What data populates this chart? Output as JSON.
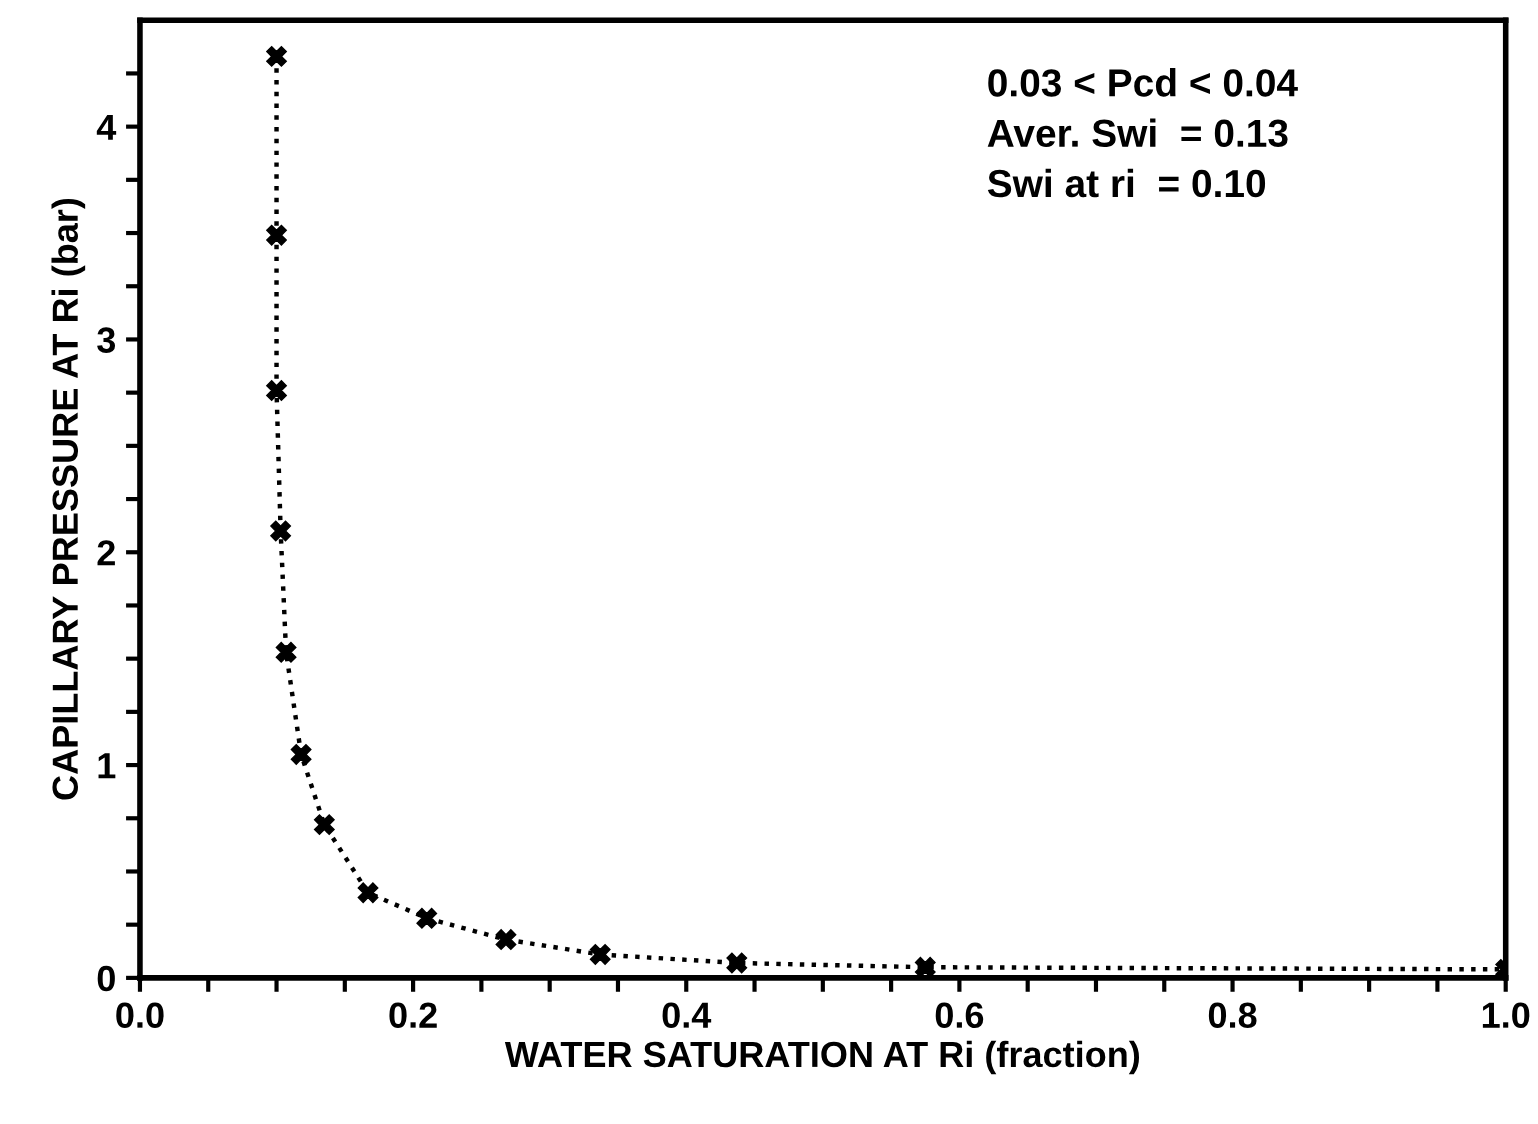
{
  "chart_data": {
    "type": "line",
    "xlabel": "WATER SATURATION AT Ri (fraction)",
    "ylabel": "CAPILLARY PRESSURE AT Ri (bar)",
    "annotations": [
      "0.03 < Pcd < 0.04\nAver. Swi  = 0.13\nSwi at ri  = 0.10"
    ],
    "series": [
      {
        "color": "#000000",
        "marker": "cross",
        "line_style": "dotted",
        "x": [
          0.1,
          0.1,
          0.1,
          0.103,
          0.107,
          0.118,
          0.135,
          0.167,
          0.21,
          0.268,
          0.337,
          0.437,
          0.575,
          1.0
        ],
        "values": [
          4.33,
          3.49,
          2.76,
          2.1,
          1.53,
          1.05,
          0.72,
          0.4,
          0.28,
          0.18,
          0.11,
          0.07,
          0.05,
          0.04
        ]
      }
    ],
    "xlim": [
      0,
      1
    ],
    "ylim": [
      0,
      4.5
    ],
    "xticks": [
      {
        "value": 0,
        "label": "0.0"
      },
      {
        "value": 0.05,
        "label": null
      },
      {
        "value": 0.1,
        "label": null
      },
      {
        "value": 0.15,
        "label": null
      },
      {
        "value": 0.2,
        "label": "0.2"
      },
      {
        "value": 0.25,
        "label": null
      },
      {
        "value": 0.3,
        "label": null
      },
      {
        "value": 0.35,
        "label": null
      },
      {
        "value": 0.4,
        "label": "0.4"
      },
      {
        "value": 0.45,
        "label": null
      },
      {
        "value": 0.5,
        "label": null
      },
      {
        "value": 0.55,
        "label": null
      },
      {
        "value": 0.6,
        "label": "0.6"
      },
      {
        "value": 0.65,
        "label": null
      },
      {
        "value": 0.7,
        "label": null
      },
      {
        "value": 0.75,
        "label": null
      },
      {
        "value": 0.8,
        "label": "0.8"
      },
      {
        "value": 0.85,
        "label": null
      },
      {
        "value": 0.9,
        "label": null
      },
      {
        "value": 0.95,
        "label": null
      },
      {
        "value": 1,
        "label": "1.0"
      }
    ],
    "yticks": [
      0,
      {
        "value": 0.25,
        "label": null
      },
      {
        "value": 0.5,
        "label": null
      },
      {
        "value": 0.75,
        "label": null
      },
      1,
      {
        "value": 1.25,
        "label": null
      },
      {
        "value": 1.5,
        "label": null
      },
      {
        "value": 1.75,
        "label": null
      },
      2,
      {
        "value": 2.25,
        "label": null
      },
      {
        "value": 2.5,
        "label": null
      },
      {
        "value": 2.75,
        "label": null
      },
      3,
      {
        "value": 3.25,
        "label": null
      },
      {
        "value": 3.5,
        "label": null
      },
      {
        "value": 3.75,
        "label": null
      },
      4,
      {
        "value": 4.25,
        "label": null
      }
    ],
    "grid": false,
    "legend": false
  }
}
